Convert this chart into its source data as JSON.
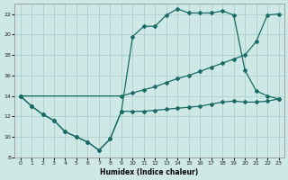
{
  "xlabel": "Humidex (Indice chaleur)",
  "background_color": "#cde8e5",
  "grid_color": "#afd0cd",
  "line_color": "#1a6b65",
  "xlim": [
    -0.5,
    23.5
  ],
  "ylim": [
    8,
    23
  ],
  "yticks": [
    8,
    10,
    12,
    14,
    16,
    18,
    20,
    22
  ],
  "xticks": [
    0,
    1,
    2,
    3,
    4,
    5,
    6,
    7,
    8,
    9,
    10,
    11,
    12,
    13,
    14,
    15,
    16,
    17,
    18,
    19,
    20,
    21,
    22,
    23
  ],
  "series": [
    {
      "x": [
        0,
        1,
        2,
        3,
        4,
        5,
        6,
        7,
        8,
        9,
        10,
        11,
        12,
        13,
        14,
        15,
        16,
        17,
        18,
        19,
        20,
        21,
        22,
        23
      ],
      "y": [
        14.0,
        13.0,
        12.2,
        11.6,
        10.5,
        10.0,
        9.5,
        8.7,
        9.8,
        12.5,
        19.8,
        20.8,
        20.8,
        21.9,
        22.5,
        22.1,
        22.1,
        22.1,
        22.3,
        21.9,
        16.5,
        14.5,
        14.0,
        13.7
      ]
    },
    {
      "x": [
        0,
        9,
        10,
        11,
        12,
        13,
        14,
        15,
        16,
        17,
        18,
        19,
        20,
        21,
        22,
        23
      ],
      "y": [
        14.0,
        14.0,
        14.3,
        14.6,
        14.9,
        15.3,
        15.7,
        16.0,
        16.4,
        16.8,
        17.2,
        17.6,
        18.0,
        19.3,
        21.9,
        22.0
      ]
    },
    {
      "x": [
        0,
        1,
        2,
        3,
        4,
        5,
        6,
        7,
        8,
        9,
        10,
        11,
        12,
        13,
        14,
        15,
        16,
        17,
        18,
        19,
        20,
        21,
        22,
        23
      ],
      "y": [
        14.0,
        13.0,
        12.2,
        11.6,
        10.5,
        10.0,
        9.5,
        8.7,
        9.8,
        12.5,
        12.5,
        12.5,
        12.6,
        12.7,
        12.8,
        12.9,
        13.0,
        13.2,
        13.4,
        13.5,
        13.4,
        13.4,
        13.5,
        13.7
      ]
    }
  ]
}
